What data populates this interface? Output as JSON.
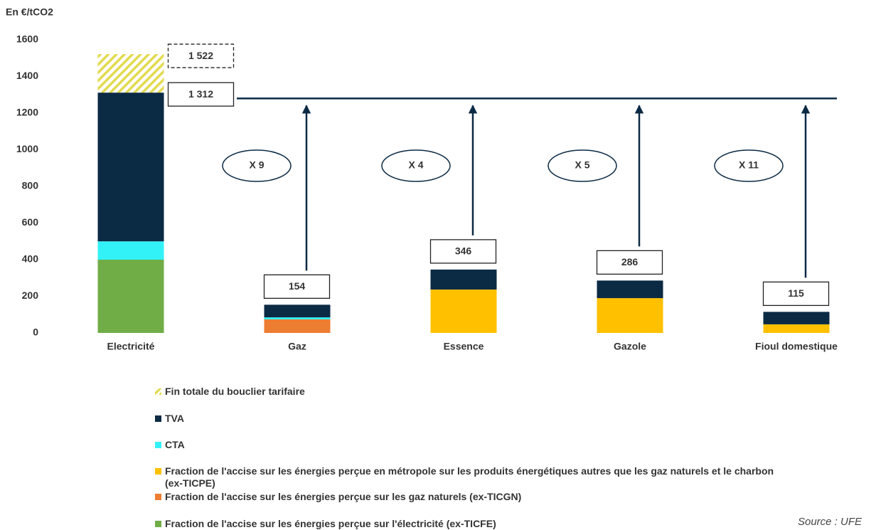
{
  "chart_data": {
    "type": "stacked_bar",
    "y_axis_label": "En €/tCO2",
    "categories": [
      "Electricité",
      "Gaz",
      "Essence",
      "Gazole",
      "Fioul domestique"
    ],
    "ylim": [
      0,
      1600
    ],
    "yticks": [
      0,
      200,
      400,
      600,
      800,
      1000,
      1200,
      1400,
      1600
    ],
    "legend_reversed": true,
    "series": [
      {
        "name": "Fraction de l'accise sur les énergies perçue sur l'électricité (ex-TICFE)",
        "color": "#70ad47",
        "values": [
          400,
          0,
          0,
          0,
          0
        ]
      },
      {
        "name": "Fraction de l'accise sur les énergies perçue sur les gaz naturels (ex-TICGN)",
        "color": "#ed7d31",
        "values": [
          0,
          74,
          0,
          0,
          0
        ]
      },
      {
        "name": "Fraction de l'accise sur les énergies perçue en métropole sur les produits énergétiques autres que les gaz naturels et le charbon (ex-TICPE)",
        "color": "#ffc000",
        "values": [
          0,
          0,
          237,
          190,
          47
        ]
      },
      {
        "name": "CTA",
        "color": "#33f2f7",
        "values": [
          100,
          11,
          0,
          0,
          0
        ]
      },
      {
        "name": "TVA",
        "color": "#0b2a44",
        "values": [
          812,
          69,
          109,
          96,
          68
        ]
      },
      {
        "name": "Fin totale du bouclier tarifaire",
        "color": "#e3da4f",
        "hatched": true,
        "values": [
          210,
          0,
          0,
          0,
          0
        ]
      }
    ],
    "totals": [
      {
        "category": 0,
        "value": 1522,
        "label": "1 522",
        "dashed": true
      },
      {
        "category": 0,
        "value": 1312,
        "label": "1 312"
      },
      {
        "category": 1,
        "value": 154,
        "label": "154"
      },
      {
        "category": 2,
        "value": 346,
        "label": "346"
      },
      {
        "category": 3,
        "value": 286,
        "label": "286"
      },
      {
        "category": 4,
        "value": 115,
        "label": "115"
      }
    ],
    "reference_line": {
      "value": 1280
    },
    "ratios": [
      "X 9",
      "X 4",
      "X 5",
      "X 11"
    ],
    "source": "Source : UFE"
  }
}
